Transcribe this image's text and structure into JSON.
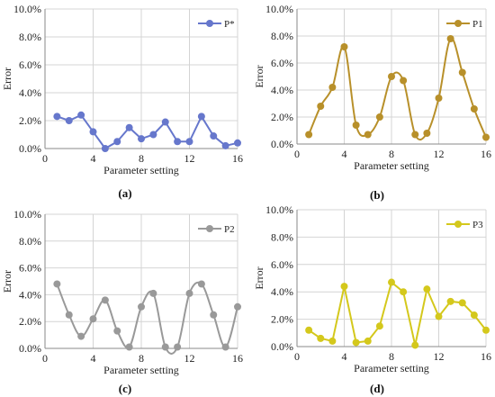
{
  "chart_data": [
    {
      "type": "line",
      "panel_label": "(a)",
      "xlabel": "Parameter setting",
      "ylabel": "Error",
      "xlim": [
        0,
        16
      ],
      "ylim": [
        0,
        0.1
      ],
      "x_ticks": [
        "0",
        "4",
        "8",
        "12",
        "16"
      ],
      "y_ticks": [
        "0.0%",
        "2.0%",
        "4.0%",
        "6.0%",
        "8.0%",
        "10.0%"
      ],
      "grid": true,
      "legend": "top-right",
      "smooth": false,
      "series": [
        {
          "name": "P*",
          "color": "#6677cc",
          "x": [
            1,
            2,
            3,
            4,
            5,
            6,
            7,
            8,
            9,
            10,
            11,
            12,
            13,
            14,
            15,
            16
          ],
          "values": [
            0.023,
            0.02,
            0.024,
            0.012,
            0.0,
            0.005,
            0.015,
            0.007,
            0.01,
            0.019,
            0.005,
            0.005,
            0.023,
            0.009,
            0.002,
            0.004
          ]
        }
      ]
    },
    {
      "type": "line",
      "panel_label": "(b)",
      "xlabel": "Parameter setting",
      "ylabel": "Error",
      "xlim": [
        0,
        16
      ],
      "ylim": [
        0,
        0.1
      ],
      "x_ticks": [
        "0",
        "4",
        "8",
        "12",
        "16"
      ],
      "y_ticks": [
        "0.0%",
        "2.0%",
        "4.0%",
        "6.0%",
        "8.0%",
        "10.0%"
      ],
      "grid": true,
      "legend": "top-right",
      "smooth": true,
      "series": [
        {
          "name": "P1",
          "color": "#b8902a",
          "x": [
            1,
            2,
            3,
            4,
            5,
            6,
            7,
            8,
            9,
            10,
            11,
            12,
            13,
            14,
            15,
            16
          ],
          "values": [
            0.007,
            0.028,
            0.042,
            0.072,
            0.014,
            0.007,
            0.02,
            0.05,
            0.047,
            0.007,
            0.008,
            0.034,
            0.078,
            0.053,
            0.026,
            0.005
          ]
        }
      ]
    },
    {
      "type": "line",
      "panel_label": "(c)",
      "xlabel": "Parameter setting",
      "ylabel": "Error",
      "xlim": [
        0,
        16
      ],
      "ylim": [
        0,
        0.1
      ],
      "x_ticks": [
        "0",
        "4",
        "8",
        "12",
        "16"
      ],
      "y_ticks": [
        "0.0%",
        "2.0%",
        "4.0%",
        "6.0%",
        "8.0%",
        "10.0%"
      ],
      "grid": true,
      "legend": "top-right",
      "smooth": true,
      "series": [
        {
          "name": "P2",
          "color": "#999999",
          "x": [
            1,
            2,
            3,
            4,
            5,
            6,
            7,
            8,
            9,
            10,
            11,
            12,
            13,
            14,
            15,
            16
          ],
          "values": [
            0.048,
            0.025,
            0.009,
            0.022,
            0.036,
            0.013,
            0.001,
            0.031,
            0.041,
            0.001,
            0.001,
            0.041,
            0.048,
            0.025,
            0.001,
            0.031
          ]
        }
      ]
    },
    {
      "type": "line",
      "panel_label": "(d)",
      "xlabel": "Parameter setting",
      "ylabel": "Error",
      "xlim": [
        0,
        16
      ],
      "ylim": [
        0,
        0.1
      ],
      "x_ticks": [
        "0",
        "4",
        "8",
        "12",
        "16"
      ],
      "y_ticks": [
        "0.0%",
        "2.0%",
        "4.0%",
        "6.0%",
        "8.0%",
        "10.0%"
      ],
      "grid": true,
      "legend": "top-right",
      "smooth": false,
      "series": [
        {
          "name": "P3",
          "color": "#d4c81c",
          "x": [
            1,
            2,
            3,
            4,
            5,
            6,
            7,
            8,
            9,
            10,
            11,
            12,
            13,
            14,
            15,
            16
          ],
          "values": [
            0.012,
            0.006,
            0.004,
            0.044,
            0.003,
            0.004,
            0.015,
            0.047,
            0.04,
            0.001,
            0.042,
            0.022,
            0.033,
            0.032,
            0.023,
            0.012
          ]
        }
      ]
    }
  ]
}
